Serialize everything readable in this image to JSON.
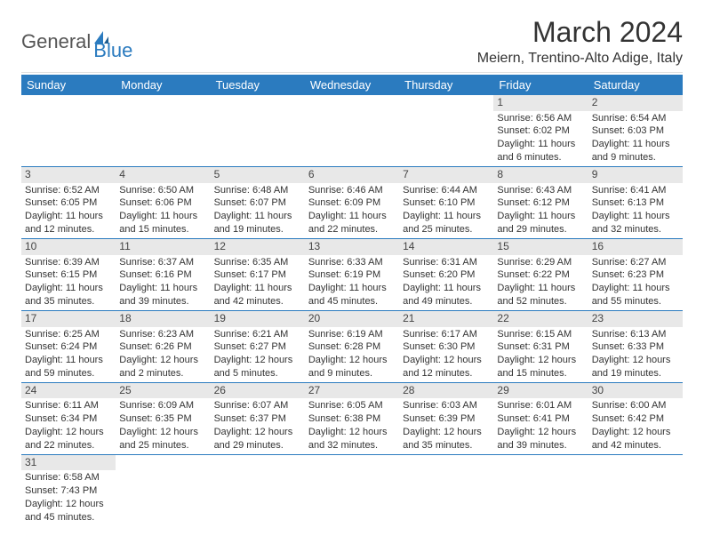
{
  "logo": {
    "text1": "General",
    "text2": "Blue",
    "icon_color": "#2b7bbf"
  },
  "header": {
    "title": "March 2024",
    "location": "Meiern, Trentino-Alto Adige, Italy"
  },
  "colors": {
    "header_bg": "#2b7bbf",
    "header_text": "#ffffff",
    "daynum_bg": "#e8e8e8",
    "cell_border": "#2b7bbf",
    "body_text": "#333333"
  },
  "calendar": {
    "day_labels": [
      "Sunday",
      "Monday",
      "Tuesday",
      "Wednesday",
      "Thursday",
      "Friday",
      "Saturday"
    ],
    "weeks": [
      [
        null,
        null,
        null,
        null,
        null,
        {
          "n": "1",
          "sunrise": "Sunrise: 6:56 AM",
          "sunset": "Sunset: 6:02 PM",
          "daylight": "Daylight: 11 hours and 6 minutes."
        },
        {
          "n": "2",
          "sunrise": "Sunrise: 6:54 AM",
          "sunset": "Sunset: 6:03 PM",
          "daylight": "Daylight: 11 hours and 9 minutes."
        }
      ],
      [
        {
          "n": "3",
          "sunrise": "Sunrise: 6:52 AM",
          "sunset": "Sunset: 6:05 PM",
          "daylight": "Daylight: 11 hours and 12 minutes."
        },
        {
          "n": "4",
          "sunrise": "Sunrise: 6:50 AM",
          "sunset": "Sunset: 6:06 PM",
          "daylight": "Daylight: 11 hours and 15 minutes."
        },
        {
          "n": "5",
          "sunrise": "Sunrise: 6:48 AM",
          "sunset": "Sunset: 6:07 PM",
          "daylight": "Daylight: 11 hours and 19 minutes."
        },
        {
          "n": "6",
          "sunrise": "Sunrise: 6:46 AM",
          "sunset": "Sunset: 6:09 PM",
          "daylight": "Daylight: 11 hours and 22 minutes."
        },
        {
          "n": "7",
          "sunrise": "Sunrise: 6:44 AM",
          "sunset": "Sunset: 6:10 PM",
          "daylight": "Daylight: 11 hours and 25 minutes."
        },
        {
          "n": "8",
          "sunrise": "Sunrise: 6:43 AM",
          "sunset": "Sunset: 6:12 PM",
          "daylight": "Daylight: 11 hours and 29 minutes."
        },
        {
          "n": "9",
          "sunrise": "Sunrise: 6:41 AM",
          "sunset": "Sunset: 6:13 PM",
          "daylight": "Daylight: 11 hours and 32 minutes."
        }
      ],
      [
        {
          "n": "10",
          "sunrise": "Sunrise: 6:39 AM",
          "sunset": "Sunset: 6:15 PM",
          "daylight": "Daylight: 11 hours and 35 minutes."
        },
        {
          "n": "11",
          "sunrise": "Sunrise: 6:37 AM",
          "sunset": "Sunset: 6:16 PM",
          "daylight": "Daylight: 11 hours and 39 minutes."
        },
        {
          "n": "12",
          "sunrise": "Sunrise: 6:35 AM",
          "sunset": "Sunset: 6:17 PM",
          "daylight": "Daylight: 11 hours and 42 minutes."
        },
        {
          "n": "13",
          "sunrise": "Sunrise: 6:33 AM",
          "sunset": "Sunset: 6:19 PM",
          "daylight": "Daylight: 11 hours and 45 minutes."
        },
        {
          "n": "14",
          "sunrise": "Sunrise: 6:31 AM",
          "sunset": "Sunset: 6:20 PM",
          "daylight": "Daylight: 11 hours and 49 minutes."
        },
        {
          "n": "15",
          "sunrise": "Sunrise: 6:29 AM",
          "sunset": "Sunset: 6:22 PM",
          "daylight": "Daylight: 11 hours and 52 minutes."
        },
        {
          "n": "16",
          "sunrise": "Sunrise: 6:27 AM",
          "sunset": "Sunset: 6:23 PM",
          "daylight": "Daylight: 11 hours and 55 minutes."
        }
      ],
      [
        {
          "n": "17",
          "sunrise": "Sunrise: 6:25 AM",
          "sunset": "Sunset: 6:24 PM",
          "daylight": "Daylight: 11 hours and 59 minutes."
        },
        {
          "n": "18",
          "sunrise": "Sunrise: 6:23 AM",
          "sunset": "Sunset: 6:26 PM",
          "daylight": "Daylight: 12 hours and 2 minutes."
        },
        {
          "n": "19",
          "sunrise": "Sunrise: 6:21 AM",
          "sunset": "Sunset: 6:27 PM",
          "daylight": "Daylight: 12 hours and 5 minutes."
        },
        {
          "n": "20",
          "sunrise": "Sunrise: 6:19 AM",
          "sunset": "Sunset: 6:28 PM",
          "daylight": "Daylight: 12 hours and 9 minutes."
        },
        {
          "n": "21",
          "sunrise": "Sunrise: 6:17 AM",
          "sunset": "Sunset: 6:30 PM",
          "daylight": "Daylight: 12 hours and 12 minutes."
        },
        {
          "n": "22",
          "sunrise": "Sunrise: 6:15 AM",
          "sunset": "Sunset: 6:31 PM",
          "daylight": "Daylight: 12 hours and 15 minutes."
        },
        {
          "n": "23",
          "sunrise": "Sunrise: 6:13 AM",
          "sunset": "Sunset: 6:33 PM",
          "daylight": "Daylight: 12 hours and 19 minutes."
        }
      ],
      [
        {
          "n": "24",
          "sunrise": "Sunrise: 6:11 AM",
          "sunset": "Sunset: 6:34 PM",
          "daylight": "Daylight: 12 hours and 22 minutes."
        },
        {
          "n": "25",
          "sunrise": "Sunrise: 6:09 AM",
          "sunset": "Sunset: 6:35 PM",
          "daylight": "Daylight: 12 hours and 25 minutes."
        },
        {
          "n": "26",
          "sunrise": "Sunrise: 6:07 AM",
          "sunset": "Sunset: 6:37 PM",
          "daylight": "Daylight: 12 hours and 29 minutes."
        },
        {
          "n": "27",
          "sunrise": "Sunrise: 6:05 AM",
          "sunset": "Sunset: 6:38 PM",
          "daylight": "Daylight: 12 hours and 32 minutes."
        },
        {
          "n": "28",
          "sunrise": "Sunrise: 6:03 AM",
          "sunset": "Sunset: 6:39 PM",
          "daylight": "Daylight: 12 hours and 35 minutes."
        },
        {
          "n": "29",
          "sunrise": "Sunrise: 6:01 AM",
          "sunset": "Sunset: 6:41 PM",
          "daylight": "Daylight: 12 hours and 39 minutes."
        },
        {
          "n": "30",
          "sunrise": "Sunrise: 6:00 AM",
          "sunset": "Sunset: 6:42 PM",
          "daylight": "Daylight: 12 hours and 42 minutes."
        }
      ],
      [
        {
          "n": "31",
          "sunrise": "Sunrise: 6:58 AM",
          "sunset": "Sunset: 7:43 PM",
          "daylight": "Daylight: 12 hours and 45 minutes."
        },
        null,
        null,
        null,
        null,
        null,
        null
      ]
    ]
  }
}
